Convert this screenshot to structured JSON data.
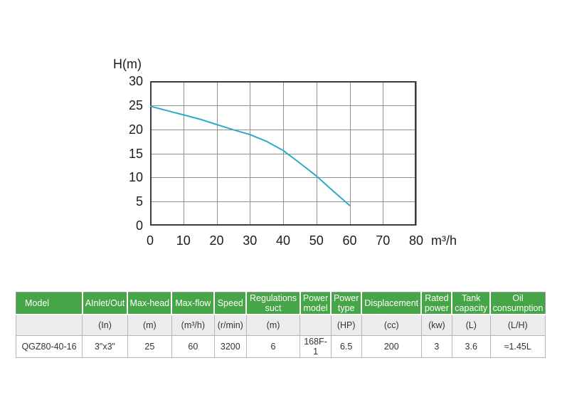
{
  "chart_data": {
    "type": "line",
    "title": "",
    "y_axis_title": "H(m)",
    "x_axis_title": "m³/h",
    "xlim": [
      0,
      80
    ],
    "ylim": [
      0,
      30
    ],
    "xticks": [
      0,
      10,
      20,
      30,
      40,
      50,
      60,
      70,
      80
    ],
    "yticks": [
      0,
      5,
      10,
      15,
      20,
      25,
      30
    ],
    "grid": true,
    "legend": "none",
    "line_color": "#2aabc8",
    "grid_color": "#909090",
    "border_color": "#3d3d3d",
    "series": [
      {
        "name": "head-vs-flow-curve",
        "points": [
          [
            0,
            24.8
          ],
          [
            5,
            23.9
          ],
          [
            10,
            23.0
          ],
          [
            15,
            22.1
          ],
          [
            20,
            21.0
          ],
          [
            25,
            19.9
          ],
          [
            30,
            18.9
          ],
          [
            35,
            17.5
          ],
          [
            40,
            15.6
          ],
          [
            45,
            13.0
          ],
          [
            50,
            10.3
          ],
          [
            55,
            7.2
          ],
          [
            60,
            4.2
          ]
        ]
      }
    ]
  },
  "table": {
    "header_bg": "#46a546",
    "header_text_color": "#ffffff",
    "units_row_bg": "#ececec",
    "col_widths_pct": [
      12.5,
      8.6,
      8.3,
      8.1,
      6.0,
      10.2,
      5.8,
      5.8,
      11.3,
      5.8,
      7.2,
      10.4
    ],
    "header": [
      "Model",
      "AInlet/Out",
      "Max-head",
      "Max-flow",
      "Speed",
      "Regulations suct",
      "Power model",
      "Power type",
      "Displacement",
      "Rated power",
      "Tank capacity",
      "Oil consumption"
    ],
    "units": [
      "",
      "(In)",
      "(m)",
      "(m³/h)",
      "(r/min)",
      "(m)",
      "",
      "(HP)",
      "(cc)",
      "(kw)",
      "(L)",
      "(L/H)"
    ],
    "rows": [
      [
        "QGZ80-40-16",
        "3\"x3\"",
        "25",
        "60",
        "3200",
        "6",
        "168F-1",
        "6.5",
        "200",
        "3",
        "3.6",
        "≈1.45L"
      ]
    ]
  }
}
